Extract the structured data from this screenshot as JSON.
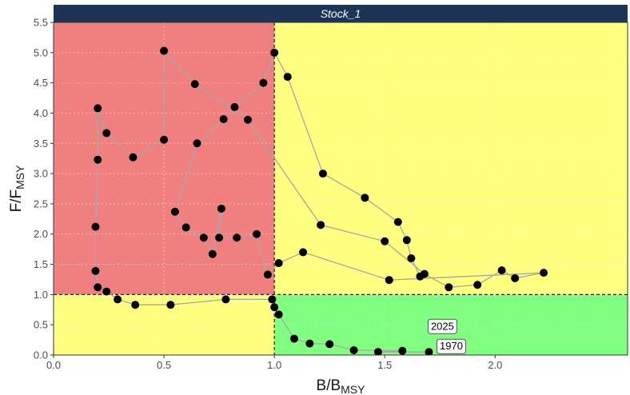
{
  "chart_data": {
    "type": "scatter",
    "panel_title": "Stock_1",
    "xlabel": "B/B",
    "xlabel_sub": "MSY",
    "ylabel": "F/F",
    "ylabel_sub": "MSY",
    "xlim": [
      0,
      2.6
    ],
    "ylim": [
      0,
      5.5
    ],
    "xticks": [
      0.0,
      0.5,
      1.0,
      1.5,
      2.0
    ],
    "xtick_labels": [
      "0.0",
      "0.5",
      "1.0",
      "1.5",
      "2.0"
    ],
    "yticks": [
      0.0,
      0.5,
      1.0,
      1.5,
      2.0,
      2.5,
      3.0,
      3.5,
      4.0,
      4.5,
      5.0,
      5.5
    ],
    "ytick_labels": [
      "0.0",
      "0.5",
      "1.0",
      "1.5",
      "2.0",
      "2.5",
      "3.0",
      "3.5",
      "4.0",
      "4.5",
      "5.0",
      "5.5"
    ],
    "grid": true,
    "reference_lines": {
      "x": 1.0,
      "y": 1.0
    },
    "zones": {
      "overfished_overfishing": "#f08080",
      "mixed": "#ffff80",
      "healthy": "#80ff80"
    },
    "colors": {
      "strip": "#1c3557",
      "point": "#000000",
      "line": "#a6a6a6"
    },
    "series": [
      {
        "x": [
          1.7,
          1.47,
          1.58,
          1.36,
          1.25,
          1.16,
          1.09,
          1.02,
          1.0,
          0.99,
          0.78,
          0.53,
          0.37,
          0.29,
          0.24,
          0.2,
          0.19,
          0.19,
          0.2,
          0.2,
          0.24,
          0.36,
          0.5,
          0.5,
          0.64,
          0.88,
          1.21,
          1.5,
          1.68,
          1.79,
          1.92,
          2.03,
          2.09,
          2.22,
          1.52,
          1.13,
          1.02,
          0.97,
          0.92,
          0.83,
          0.75,
          0.76,
          0.72,
          0.68,
          0.6,
          0.55,
          0.65,
          0.77,
          0.82,
          0.95,
          1.0,
          1.06,
          1.22,
          1.41,
          1.56,
          1.6,
          1.62,
          1.66
        ],
        "y": [
          0.05,
          0.05,
          0.07,
          0.08,
          0.18,
          0.19,
          0.27,
          0.67,
          0.79,
          0.92,
          0.92,
          0.83,
          0.83,
          0.92,
          1.05,
          1.12,
          1.39,
          2.12,
          3.23,
          4.08,
          3.67,
          3.27,
          3.56,
          5.03,
          4.48,
          3.89,
          2.15,
          1.88,
          1.34,
          1.12,
          1.16,
          1.4,
          1.27,
          1.36,
          1.24,
          1.7,
          1.52,
          1.33,
          2.0,
          1.94,
          1.94,
          2.42,
          1.67,
          1.94,
          2.11,
          2.37,
          3.5,
          3.9,
          4.1,
          4.5,
          5.0,
          4.6,
          3.0,
          2.6,
          2.2,
          1.9,
          1.6,
          1.3
        ]
      }
    ],
    "annotations": [
      {
        "text": "1970",
        "x": 1.7,
        "y": 0.05
      },
      {
        "text": "2025",
        "x": 1.66,
        "y": 0.38
      }
    ]
  }
}
